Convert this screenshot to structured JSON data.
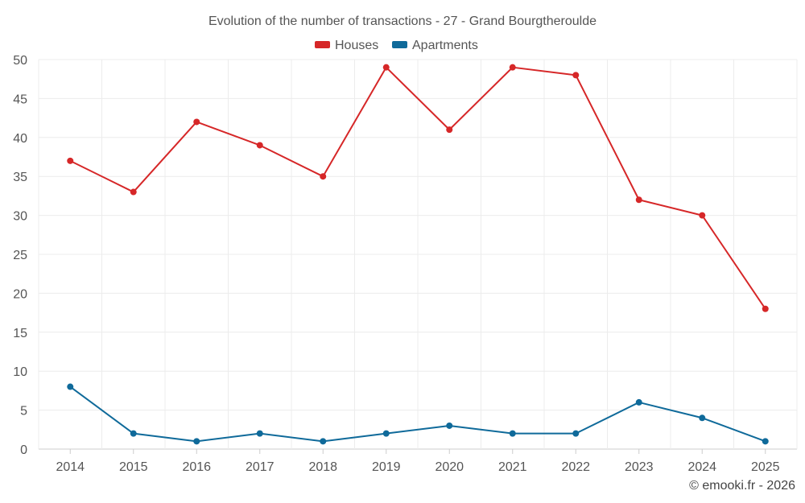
{
  "chart_data": {
    "type": "line",
    "title": "Evolution of the number of transactions - 27 - Grand Bourgtheroulde",
    "categories": [
      "2014",
      "2015",
      "2016",
      "2017",
      "2018",
      "2019",
      "2020",
      "2021",
      "2022",
      "2023",
      "2024",
      "2025"
    ],
    "series": [
      {
        "name": "Houses",
        "color": "#d62728",
        "values": [
          37,
          33,
          42,
          39,
          35,
          49,
          41,
          49,
          48,
          32,
          30,
          18
        ]
      },
      {
        "name": "Apartments",
        "color": "#0f6a9a",
        "values": [
          8,
          2,
          1,
          2,
          1,
          2,
          3,
          2,
          2,
          6,
          4,
          1
        ]
      }
    ],
    "yticks": [
      0,
      5,
      10,
      15,
      20,
      25,
      30,
      35,
      40,
      45,
      50
    ],
    "ylim": [
      0,
      50
    ],
    "grid": true,
    "legend_position": "top-center",
    "xlabel": "",
    "ylabel": ""
  },
  "credit": "© emooki.fr - 2026"
}
